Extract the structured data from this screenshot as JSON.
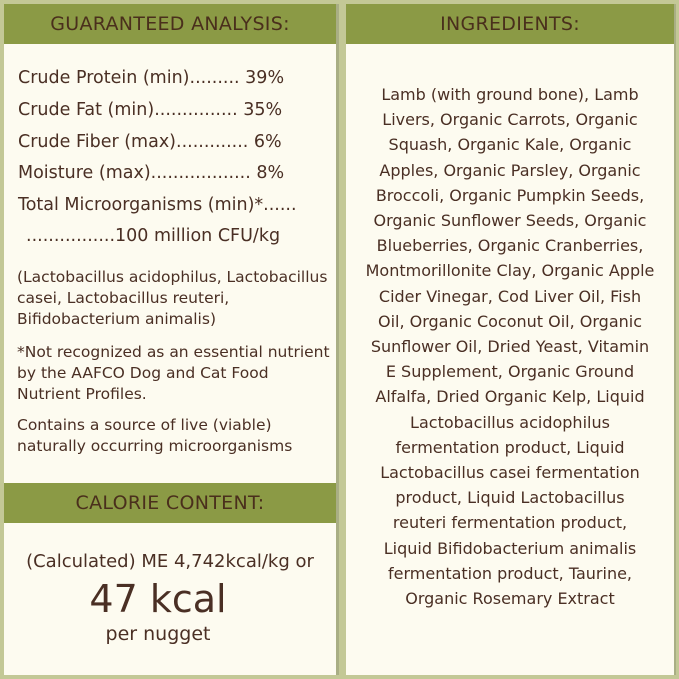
{
  "analysis": {
    "title": "GUARANTEED ANALYSIS:",
    "rows": [
      {
        "label": "Crude Protein (min)",
        "dots": ".........",
        "value": "39%"
      },
      {
        "label": "Crude Fat (min)",
        "dots": "...............",
        "value": "35%"
      },
      {
        "label": "Crude Fiber (max)",
        "dots": ".............",
        "value": "6%"
      },
      {
        "label": "Moisture (max)",
        "dots": "..................",
        "value": "8%"
      },
      {
        "label": "Total Microorganisms (min)*",
        "dots": "......",
        "value": ""
      },
      {
        "label": "",
        "dots": "................",
        "value": "100 million CFU/kg"
      }
    ],
    "strains": "(Lactobacillus acidophilus, Lactobacillus casei, Lactobacillus reuteri, Bifidobacterium animalis)",
    "footnote": "*Not recognized as an essential nutrient by the AAFCO Dog and Cat Food Nutrient Profiles.",
    "live_note": "Contains a source of live (viable) naturally occurring microorganisms"
  },
  "calorie": {
    "title": "CALORIE CONTENT:",
    "line1": "(Calculated) ME 4,742kcal/kg or",
    "big": "47 kcal",
    "line3": "per nugget"
  },
  "ingredients": {
    "title": "INGREDIENTS:",
    "lines": [
      "Lamb (with ground bone), Lamb",
      "Livers, Organic Carrots, Organic",
      "Squash, Organic Kale, Organic",
      "Apples, Organic Parsley, Organic",
      "Broccoli, Organic Pumpkin Seeds,",
      "Organic Sunflower Seeds, Organic",
      "Blueberries, Organic Cranberries,",
      "Montmorillonite Clay, Organic Apple",
      "Cider Vinegar, Cod Liver Oil,  Fish",
      "Oil, Organic Coconut Oil, Organic",
      "Sunflower Oil, Dried Yeast, Vitamin",
      "E Supplement, Organic Ground",
      "Alfalfa, Dried Organic Kelp, Liquid",
      "Lactobacillus acidophilus",
      "fermentation product, Liquid",
      "Lactobacillus casei fermentation",
      "product, Liquid Lactobacillus",
      "reuteri fermentation product,",
      "Liquid Bifidobacterium animalis",
      "fermentation product, Taurine,",
      "Organic Rosemary Extract"
    ]
  },
  "colors": {
    "header": "#8b9a45",
    "panel": "#fdfbf0",
    "text": "#4a2f24",
    "background": "#c3c896"
  }
}
